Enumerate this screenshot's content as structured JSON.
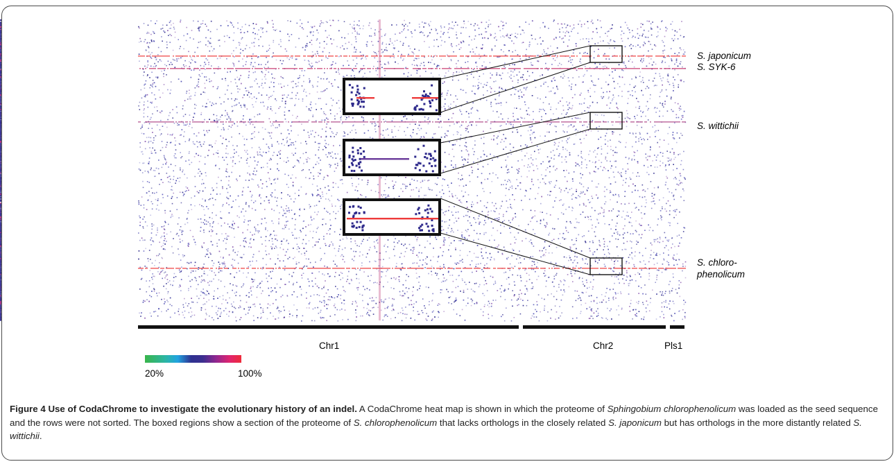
{
  "figure": {
    "species_labels": [
      {
        "key": "japonicum",
        "text": "S. japonicum"
      },
      {
        "key": "syk6",
        "text": "S. SYK-6"
      },
      {
        "key": "wittichii",
        "text": "S. wittichii"
      },
      {
        "key": "chloro1",
        "text": "S. chloro-"
      },
      {
        "key": "chloro2",
        "text": "phenolicum"
      }
    ],
    "chromosomes": [
      {
        "key": "chr1",
        "text": "Chr1"
      },
      {
        "key": "chr2",
        "text": "Chr2"
      },
      {
        "key": "pls1",
        "text": "Pls1"
      }
    ],
    "legend": {
      "min_label": "20%",
      "max_label": "100%",
      "colors": [
        "#39b54a",
        "#2bb5a8",
        "#22a3e0",
        "#2e3190",
        "#92278f",
        "#e0246e",
        "#ee2b3a"
      ]
    },
    "highlight_colors": {
      "ortholog_line": "#ee3b3b",
      "dots": "#2e2a8c",
      "box": "#111111"
    }
  },
  "caption": {
    "label": "Figure 4",
    "title": "Use of CodaChrome to investigate the evolutionary history of an indel.",
    "text_1": "A CodaChrome heat map is shown in which the proteome of ",
    "species_italic": "Sphingobium chlorophenolicum",
    "text_2": " was loaded as the seed sequence and the rows were not sorted. The boxed regions show a section of the proteome of ",
    "italic_2": "S. chlorophenolicum",
    "text_3": " that lacks orthologs in the closely related ",
    "italic_3": "S. japonicum",
    "text_4": " but has orthologs in the more distantly related ",
    "italic_4": "S. wittichii",
    "text_5": "."
  }
}
